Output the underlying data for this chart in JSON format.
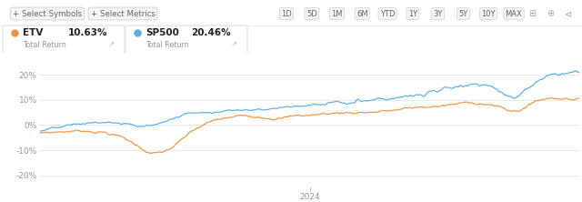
{
  "background_color": "#ffffff",
  "grid_color": "#e8e8e8",
  "ylim": [
    -25,
    28
  ],
  "yticks": [
    -20,
    -10,
    0,
    10,
    20
  ],
  "ytick_labels": [
    "-20%",
    "-10%",
    "0%",
    "10%",
    "20%"
  ],
  "xlabel_2024": "2024",
  "etv_color": "#f5923e",
  "sp500_color": "#5aade8",
  "etv_label": "ETV",
  "etv_pct": "10.63%",
  "sp500_label": "SP500",
  "sp500_pct": "20.46%",
  "total_return": "Total Return",
  "header_border": "#e8e8e8",
  "toolbar_items": [
    "1D",
    "5D",
    "1M",
    "6M",
    "YTD",
    "1Y",
    "3Y",
    "5Y",
    "10Y",
    "MAX"
  ],
  "n_points": 350
}
